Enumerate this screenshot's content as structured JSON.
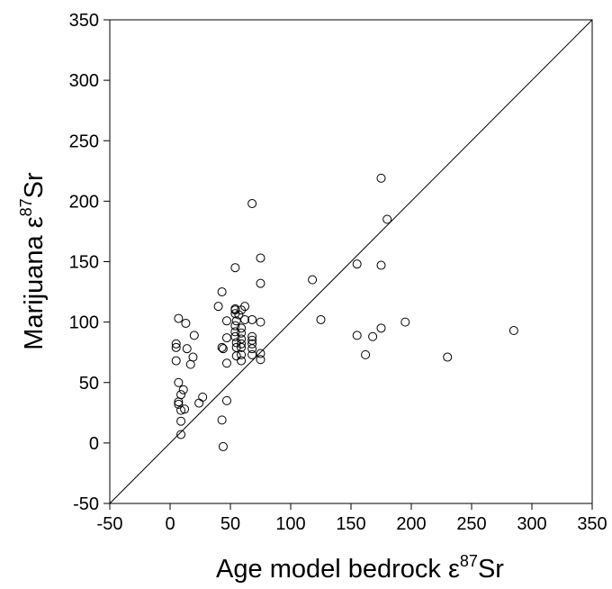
{
  "chart_data": {
    "type": "scatter",
    "xlabel": {
      "prefix": "Age model bedrock ",
      "greek": "ε",
      "superscript": "87",
      "suffix": "Sr"
    },
    "ylabel": {
      "prefix": "Marijuana ",
      "greek": "ε",
      "superscript": "87",
      "suffix": "Sr"
    },
    "xlim": [
      -50,
      350
    ],
    "ylim": [
      -50,
      350
    ],
    "x_ticks": [
      "-50",
      "0",
      "50",
      "100",
      "150",
      "200",
      "250",
      "300",
      "350"
    ],
    "y_ticks": [
      "-50",
      "0",
      "50",
      "100",
      "150",
      "200",
      "250",
      "300",
      "350"
    ],
    "grid": false,
    "reference_line": {
      "x": [
        -50,
        350
      ],
      "y": [
        -50,
        350
      ]
    },
    "marker": "open-circle",
    "points": [
      [
        7,
        103
      ],
      [
        5,
        82
      ],
      [
        5,
        79
      ],
      [
        5,
        68
      ],
      [
        7,
        50
      ],
      [
        7,
        34
      ],
      [
        7,
        32
      ],
      [
        9,
        40
      ],
      [
        9,
        27
      ],
      [
        9,
        18
      ],
      [
        9,
        7
      ],
      [
        11,
        44
      ],
      [
        12,
        28
      ],
      [
        13,
        99
      ],
      [
        14,
        78
      ],
      [
        17,
        65
      ],
      [
        19,
        71
      ],
      [
        20,
        89
      ],
      [
        24,
        33
      ],
      [
        27,
        38
      ],
      [
        40,
        113
      ],
      [
        43,
        125
      ],
      [
        43,
        79
      ],
      [
        44,
        78
      ],
      [
        43,
        19
      ],
      [
        44,
        -3
      ],
      [
        47,
        101
      ],
      [
        47,
        87
      ],
      [
        47,
        66
      ],
      [
        47,
        35
      ],
      [
        54,
        145
      ],
      [
        54,
        111
      ],
      [
        54,
        110
      ],
      [
        54,
        107
      ],
      [
        55,
        101
      ],
      [
        54,
        97
      ],
      [
        54,
        92
      ],
      [
        54,
        88
      ],
      [
        55,
        83
      ],
      [
        55,
        79
      ],
      [
        55,
        72
      ],
      [
        57,
        106
      ],
      [
        59,
        110
      ],
      [
        59,
        95
      ],
      [
        59,
        91
      ],
      [
        59,
        86
      ],
      [
        59,
        82
      ],
      [
        59,
        79
      ],
      [
        59,
        73
      ],
      [
        59,
        68
      ],
      [
        62,
        113
      ],
      [
        62,
        102
      ],
      [
        68,
        198
      ],
      [
        68,
        102
      ],
      [
        68,
        88
      ],
      [
        68,
        85
      ],
      [
        68,
        82
      ],
      [
        68,
        78
      ],
      [
        68,
        73
      ],
      [
        75,
        153
      ],
      [
        75,
        132
      ],
      [
        75,
        100
      ],
      [
        75,
        74
      ],
      [
        75,
        69
      ],
      [
        118,
        135
      ],
      [
        125,
        102
      ],
      [
        155,
        148
      ],
      [
        155,
        89
      ],
      [
        162,
        73
      ],
      [
        168,
        88
      ],
      [
        175,
        219
      ],
      [
        175,
        147
      ],
      [
        175,
        95
      ],
      [
        180,
        185
      ],
      [
        195,
        100
      ],
      [
        230,
        71
      ],
      [
        285,
        93
      ]
    ]
  }
}
